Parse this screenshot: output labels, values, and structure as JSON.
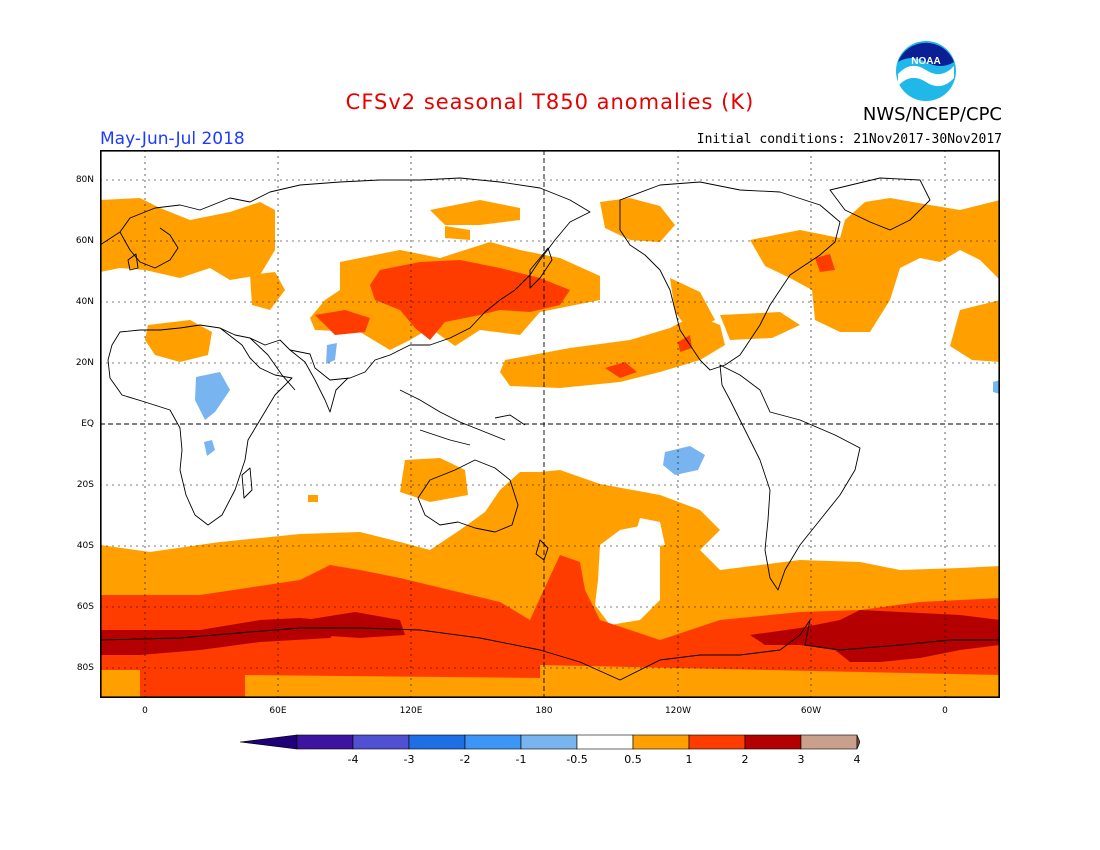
{
  "header": {
    "title": "CFSv2 seasonal T850 anomalies (K)",
    "period": "May-Jun-Jul 2018",
    "initial_conditions": "Initial conditions: 21Nov2017-30Nov2017",
    "agency": "NWS/NCEP/CPC",
    "logo_text": "NOAA"
  },
  "map": {
    "latitude_labels": [
      "80N",
      "60N",
      "40N",
      "20N",
      "EQ",
      "20S",
      "40S",
      "60S",
      "80S"
    ],
    "longitude_labels": [
      "0",
      "60E",
      "120E",
      "180",
      "120W",
      "60W",
      "0"
    ],
    "colors": {
      "ocean_bg": "#ffffff",
      "c_m1": "#78b4f0",
      "c_05": "#ffa000",
      "c_1": "#ff3c00",
      "c_2": "#b40000"
    }
  },
  "colorbar": {
    "bins": [
      {
        "color": "#3c14a0"
      },
      {
        "color": "#5050d2"
      },
      {
        "color": "#1e6ee6"
      },
      {
        "color": "#3c96f5"
      },
      {
        "color": "#78b4f0"
      },
      {
        "color": "#ffffff"
      },
      {
        "color": "#ffa000"
      },
      {
        "color": "#ff3c00"
      },
      {
        "color": "#b40000"
      },
      {
        "color": "#c8a08c"
      }
    ],
    "low_cap_color": "#1e0078",
    "high_cap_color": "#78503c",
    "tick_labels": [
      "-4",
      "-3",
      "-2",
      "-1",
      "-0.5",
      "0.5",
      "1",
      "2",
      "3",
      "4"
    ]
  }
}
